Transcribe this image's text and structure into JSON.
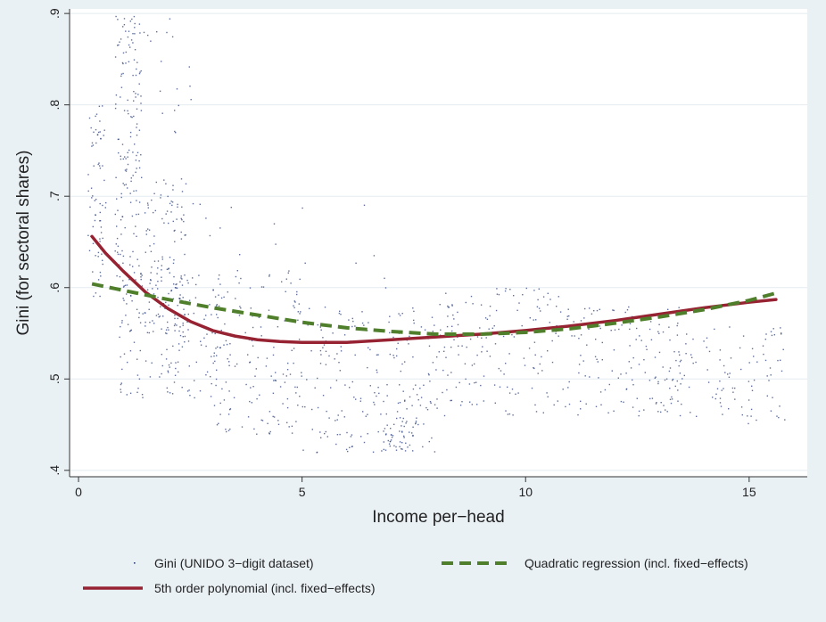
{
  "chart_data": {
    "type": "scatter",
    "title": "",
    "xlabel": "Income per−head",
    "ylabel": "Gini (for sectoral shares)",
    "xlim": [
      -0.2,
      16.3
    ],
    "ylim": [
      0.393,
      0.905
    ],
    "xticks": [
      0,
      5,
      10,
      15
    ],
    "xtick_labels": [
      "0",
      "5",
      "10",
      "15"
    ],
    "yticks": [
      0.4,
      0.5,
      0.6,
      0.7,
      0.8,
      0.9
    ],
    "ytick_labels": [
      ".4",
      ".5",
      ".6",
      ".7",
      ".8",
      ".9"
    ],
    "grid": "horizontal",
    "legend_position": "bottom",
    "series": [
      {
        "name": "Gini (UNIDO 3−digit dataset)",
        "kind": "scatter",
        "color": "#2b3f7a",
        "clusters": [
          {
            "x": [
              0.2,
              0.6
            ],
            "y": [
              0.59,
              0.8
            ],
            "n": 70
          },
          {
            "x": [
              0.8,
              1.4
            ],
            "y": [
              0.6,
              0.9
            ],
            "n": 150
          },
          {
            "x": [
              1.4,
              2.4
            ],
            "y": [
              0.55,
              0.72
            ],
            "n": 120
          },
          {
            "x": [
              0.9,
              3.2
            ],
            "y": [
              0.48,
              0.62
            ],
            "n": 170
          },
          {
            "x": [
              1.2,
              2.6
            ],
            "y": [
              0.76,
              0.9
            ],
            "n": 25
          },
          {
            "x": [
              3.0,
              5.0
            ],
            "y": [
              0.44,
              0.62
            ],
            "n": 150
          },
          {
            "x": [
              5.0,
              8.0
            ],
            "y": [
              0.42,
              0.58
            ],
            "n": 200
          },
          {
            "x": [
              6.8,
              7.6
            ],
            "y": [
              0.42,
              0.46
            ],
            "n": 40
          },
          {
            "x": [
              8.0,
              11.0
            ],
            "y": [
              0.46,
              0.6
            ],
            "n": 170
          },
          {
            "x": [
              11.0,
              13.5
            ],
            "y": [
              0.46,
              0.58
            ],
            "n": 150
          },
          {
            "x": [
              13.5,
              15.8
            ],
            "y": [
              0.45,
              0.56
            ],
            "n": 90
          },
          {
            "x": [
              2.0,
              7.0
            ],
            "y": [
              0.6,
              0.7
            ],
            "n": 20
          }
        ]
      },
      {
        "name": "Quadratic regression (incl. fixed−effects)",
        "kind": "line",
        "style": "dashed",
        "color": "#4f7f2b",
        "x": [
          0.3,
          1,
          2,
          3,
          4,
          5,
          6,
          7,
          8,
          9,
          10,
          11,
          12,
          13,
          14,
          15,
          15.6
        ],
        "y": [
          0.604,
          0.597,
          0.587,
          0.578,
          0.57,
          0.562,
          0.556,
          0.552,
          0.549,
          0.549,
          0.551,
          0.555,
          0.561,
          0.568,
          0.576,
          0.586,
          0.594
        ]
      },
      {
        "name": "5th order polynomial (incl. fixed−effects)",
        "kind": "line",
        "style": "solid",
        "color": "#962232",
        "x": [
          0.3,
          0.6,
          1,
          1.5,
          2,
          2.5,
          3,
          3.5,
          4,
          4.5,
          5,
          6,
          7,
          8,
          9,
          10,
          11,
          12,
          13,
          14,
          15,
          15.6
        ],
        "y": [
          0.656,
          0.638,
          0.618,
          0.595,
          0.577,
          0.563,
          0.553,
          0.547,
          0.543,
          0.541,
          0.54,
          0.54,
          0.543,
          0.546,
          0.549,
          0.553,
          0.558,
          0.564,
          0.571,
          0.578,
          0.584,
          0.587
        ]
      }
    ]
  }
}
